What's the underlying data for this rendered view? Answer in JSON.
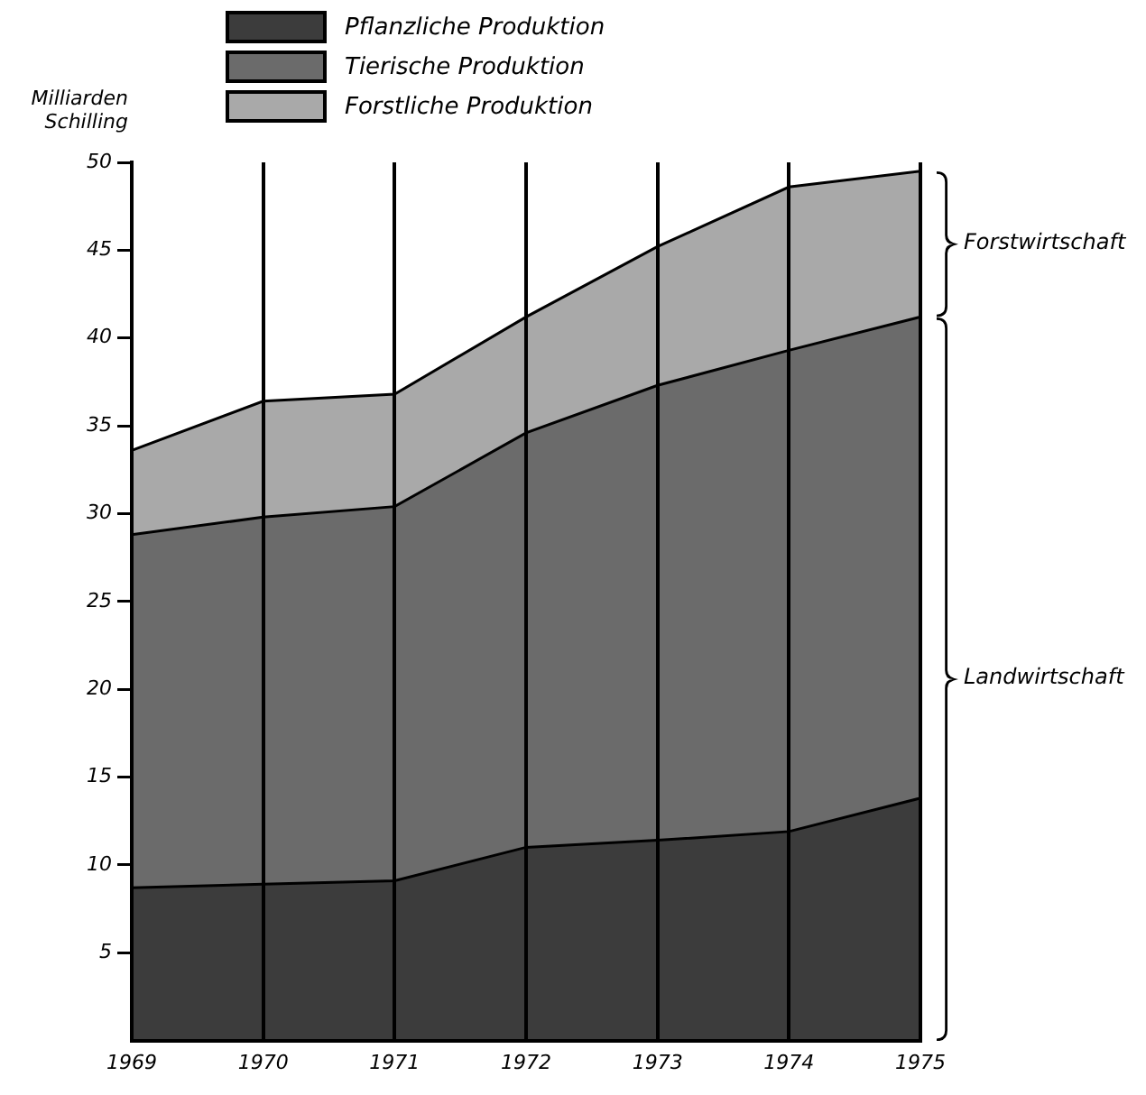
{
  "chart_data": {
    "type": "area",
    "stacked": true,
    "ylabel": "Milliarden Schilling",
    "categories": [
      "1969",
      "1970",
      "1971",
      "1972",
      "1973",
      "1974",
      "1975"
    ],
    "series": [
      {
        "name": "Pflanzliche Produktion",
        "color": "#3c3c3c",
        "values": [
          8.7,
          8.9,
          9.1,
          11.0,
          11.4,
          11.9,
          13.8
        ]
      },
      {
        "name": "Tierische Produktion",
        "color": "#6b6b6b",
        "values": [
          20.1,
          20.9,
          21.3,
          23.6,
          25.9,
          27.4,
          27.4
        ]
      },
      {
        "name": "Forstliche Produktion",
        "color": "#a9a9a9",
        "values": [
          4.8,
          6.6,
          6.4,
          6.6,
          7.9,
          9.3,
          8.3
        ]
      }
    ],
    "ylim": [
      0,
      50
    ],
    "yticks": [
      5,
      10,
      15,
      20,
      25,
      30,
      35,
      40,
      45,
      50
    ],
    "grid": "x",
    "legend": "top left",
    "annotations": [
      "Forstwirtschaft",
      "Landwirtschaft"
    ]
  }
}
